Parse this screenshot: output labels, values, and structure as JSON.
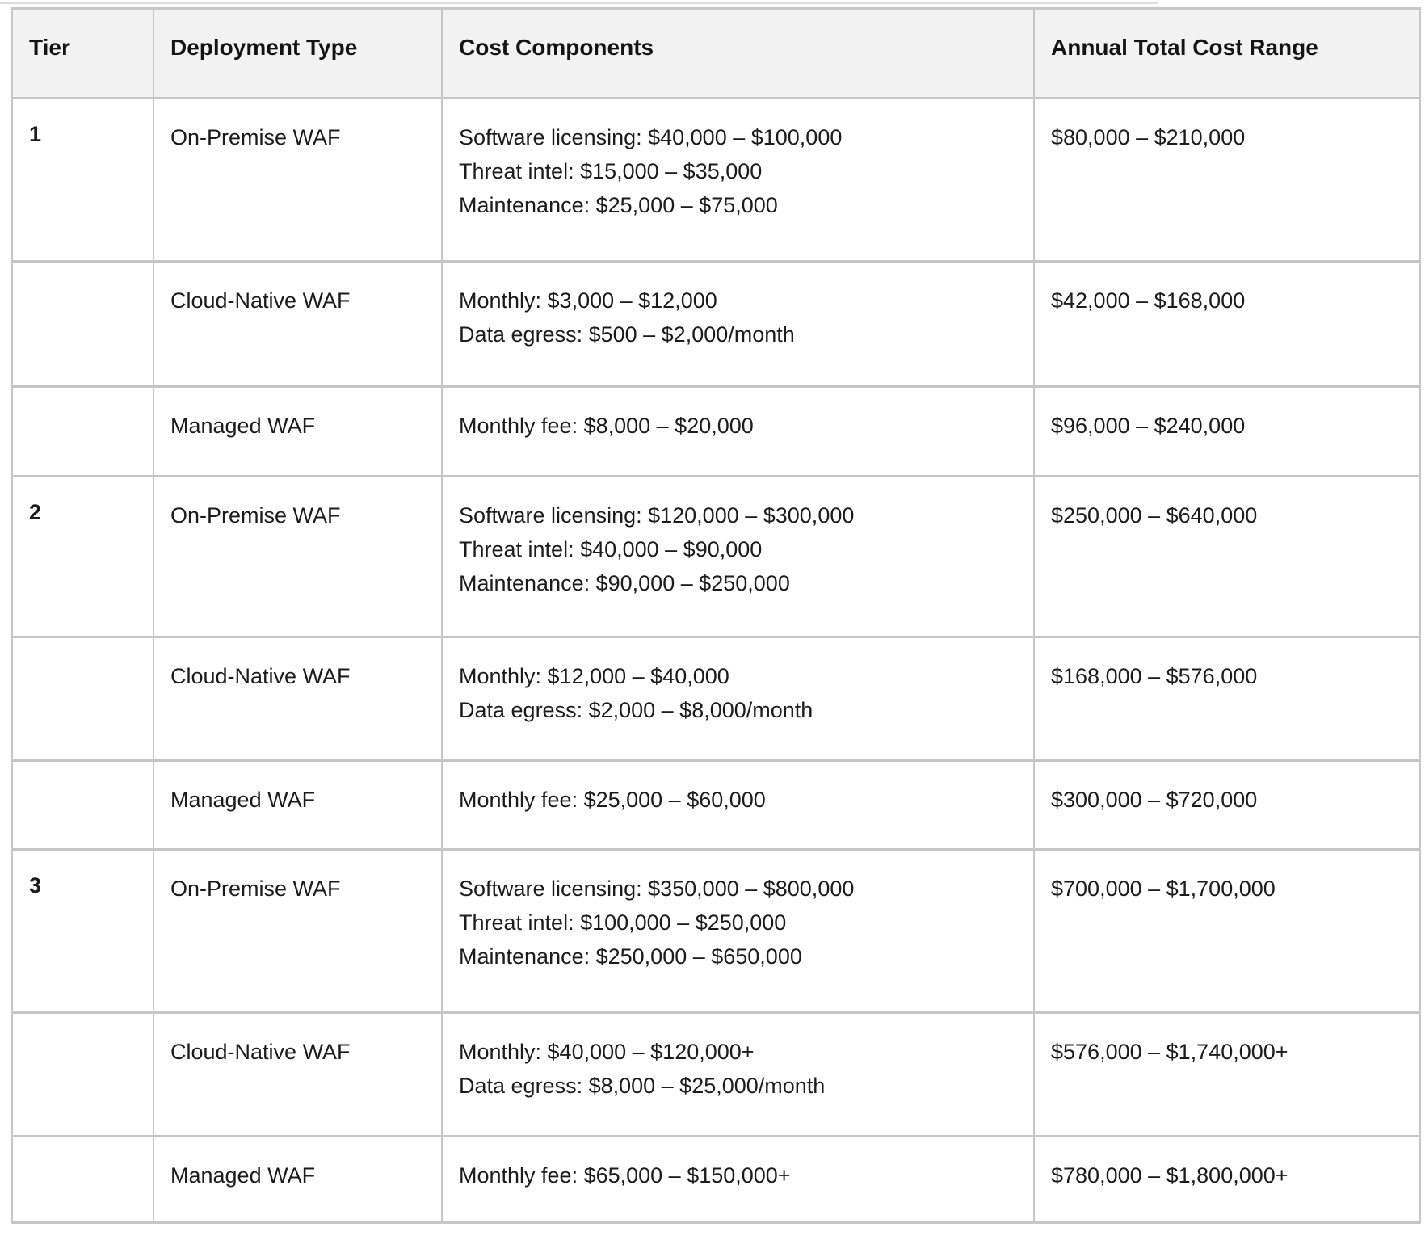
{
  "colors": {
    "header_background": "#f2f2f3",
    "border": "#c6c6c6",
    "text": "#1c1c1c",
    "divider": "#dcdcdc"
  },
  "table": {
    "columns": [
      "Tier",
      "Deployment Type",
      "Cost Components",
      "Annual Total Cost Range"
    ],
    "rows": [
      {
        "tier": "1",
        "deployment": "On-Premise WAF",
        "components": [
          "Software licensing: $40,000 – $100,000",
          "Threat intel: $15,000 – $35,000",
          "Maintenance: $25,000 – $75,000"
        ],
        "annual": "$80,000 – $210,000"
      },
      {
        "tier": "",
        "deployment": "Cloud-Native WAF",
        "components": [
          "Monthly: $3,000 – $12,000",
          "Data egress: $500 – $2,000/month"
        ],
        "annual": "$42,000 – $168,000"
      },
      {
        "tier": "",
        "deployment": "Managed WAF",
        "components": [
          "Monthly fee: $8,000 – $20,000"
        ],
        "annual": "$96,000 – $240,000"
      },
      {
        "tier": "2",
        "deployment": "On-Premise WAF",
        "components": [
          "Software licensing: $120,000 – $300,000",
          "Threat intel: $40,000 – $90,000",
          "Maintenance: $90,000 – $250,000"
        ],
        "annual": "$250,000 – $640,000"
      },
      {
        "tier": "",
        "deployment": "Cloud-Native WAF",
        "components": [
          "Monthly: $12,000 – $40,000",
          "Data egress: $2,000 – $8,000/month"
        ],
        "annual": "$168,000 – $576,000"
      },
      {
        "tier": "",
        "deployment": "Managed WAF",
        "components": [
          "Monthly fee: $25,000 – $60,000"
        ],
        "annual": "$300,000 – $720,000"
      },
      {
        "tier": "3",
        "deployment": "On-Premise WAF",
        "components": [
          "Software licensing: $350,000 – $800,000",
          "Threat intel: $100,000 – $250,000",
          "Maintenance: $250,000 – $650,000"
        ],
        "annual": "$700,000 – $1,700,000"
      },
      {
        "tier": "",
        "deployment": "Cloud-Native WAF",
        "components": [
          "Monthly: $40,000 – $120,000+",
          "Data egress: $8,000 – $25,000/month"
        ],
        "annual": "$576,000 – $1,740,000+"
      },
      {
        "tier": "",
        "deployment": "Managed WAF",
        "components": [
          "Monthly fee: $65,000 – $150,000+"
        ],
        "annual": "$780,000 – $1,800,000+"
      }
    ]
  }
}
